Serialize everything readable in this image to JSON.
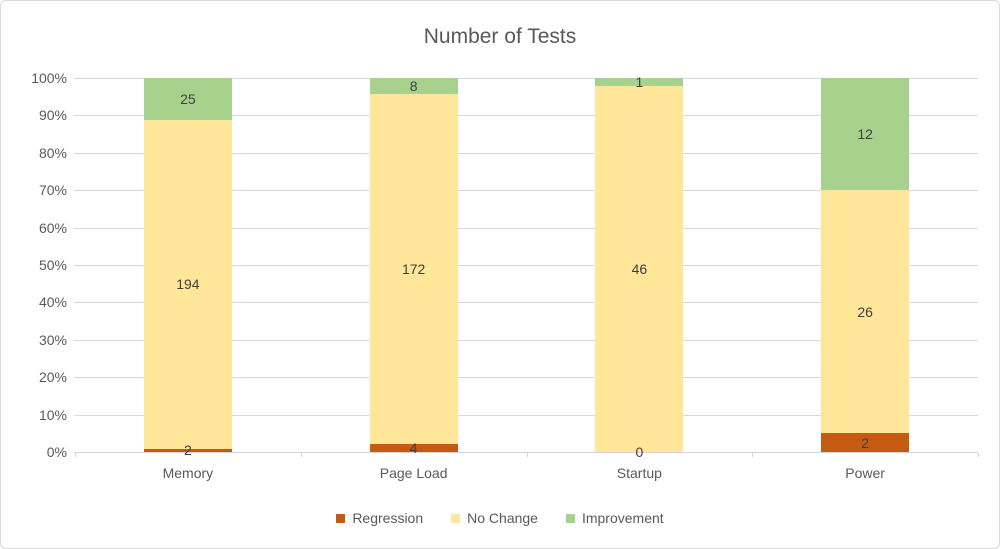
{
  "chart_data": {
    "type": "bar",
    "variant": "stacked-100-percent",
    "title": "Number of Tests",
    "categories": [
      "Memory",
      "Page Load",
      "Startup",
      "Power"
    ],
    "series": [
      {
        "name": "Regression",
        "color": "#C55A11",
        "values": [
          2,
          4,
          0,
          2
        ]
      },
      {
        "name": "No Change",
        "color": "#FFE699",
        "values": [
          194,
          172,
          46,
          26
        ]
      },
      {
        "name": "Improvement",
        "color": "#A9D18E",
        "values": [
          25,
          8,
          1,
          12
        ]
      }
    ],
    "xlabel": "",
    "ylabel": "",
    "y_axis": {
      "min": 0,
      "max": 100,
      "unit": "%",
      "tick_labels": [
        "0%",
        "10%",
        "20%",
        "30%",
        "40%",
        "50%",
        "60%",
        "70%",
        "80%",
        "90%",
        "100%"
      ]
    },
    "grid": true,
    "legend_position": "bottom",
    "colors": {
      "title_text": "#595959",
      "axis_text": "#595959",
      "data_label_text": "#404040",
      "gridline": "#D9D9D9",
      "chart_border": "#D9D9D9",
      "background": "#FFFFFF"
    }
  }
}
